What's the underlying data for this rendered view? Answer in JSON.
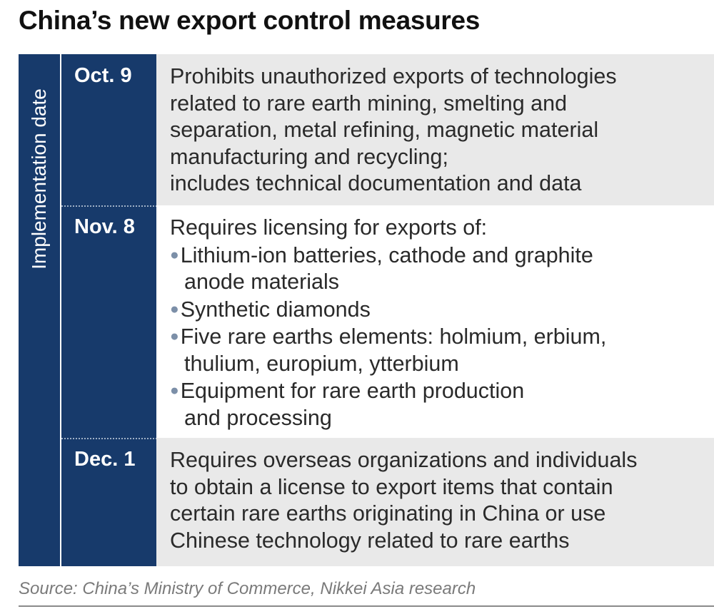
{
  "title": "China’s new export control measures",
  "side_label": "Implementation date",
  "rows": [
    {
      "date": "Oct. 9",
      "lines": [
        "Prohibits unauthorized exports of technologies",
        "related to rare earth mining, smelting and",
        "separation, metal refining, magnetic material",
        "manufacturing and recycling;",
        "includes technical documentation and data"
      ]
    },
    {
      "date": "Nov. 8",
      "intro": "Requires licensing for exports of:",
      "bullets": [
        [
          "Lithium-ion batteries, cathode and graphite",
          "anode materials"
        ],
        [
          "Synthetic diamonds"
        ],
        [
          "Five rare earths elements: holmium, erbium,",
          "thulium, europium, ytterbium"
        ],
        [
          "Equipment for rare earth production",
          "and processing"
        ]
      ]
    },
    {
      "date": "Dec. 1",
      "lines": [
        "Requires overseas organizations and individuals",
        "to obtain a license to export items that contain",
        "certain rare earths originating in China or use",
        "Chinese technology related to rare earths"
      ]
    }
  ],
  "source": "Source: China’s Ministry of Commerce, Nikkei Asia research",
  "colors": {
    "navy": "#173a6b",
    "row_gray": "#e9e9e9",
    "bullet": "#7c8fa8"
  }
}
